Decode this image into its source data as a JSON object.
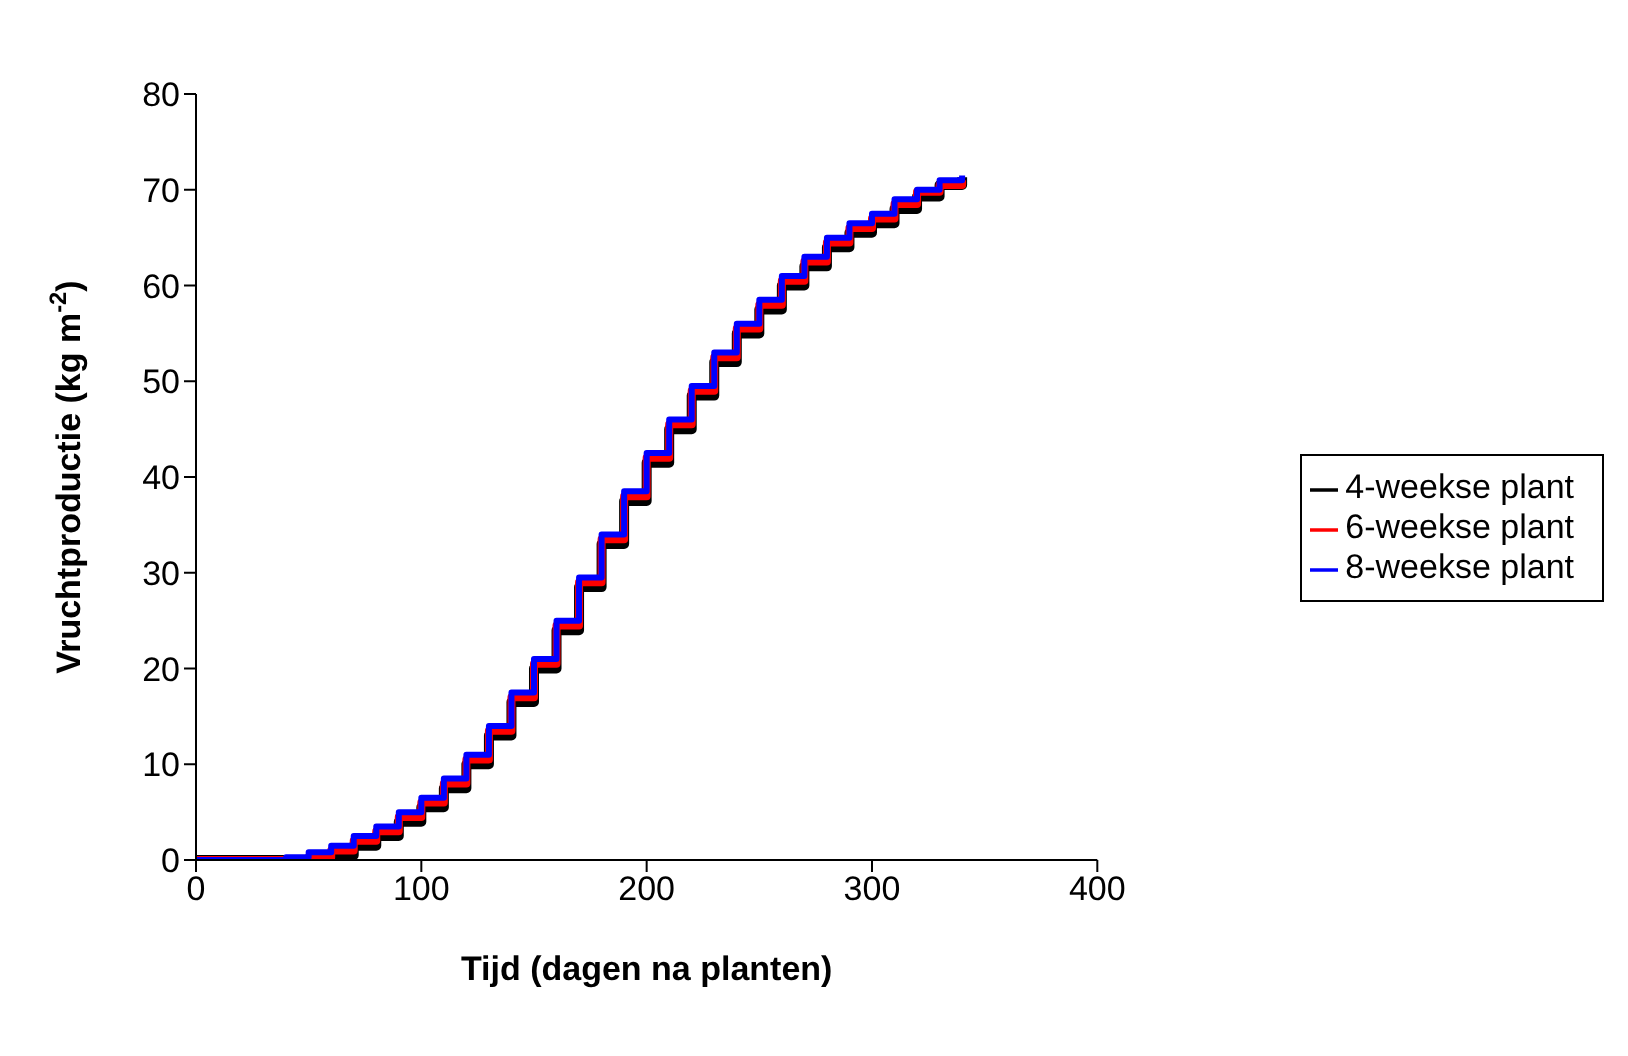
{
  "chart_data": {
    "type": "step",
    "xlabel": "Tijd (dagen na planten)",
    "ylabel": "Vruchtproductie (kg m$^{-2}$)",
    "xlim": [
      0,
      400
    ],
    "xticks": [
      0,
      100,
      200,
      300,
      400
    ],
    "ylim": [
      0,
      80
    ],
    "yticks": [
      0,
      10,
      20,
      30,
      40,
      50,
      60,
      70,
      80
    ],
    "legend": "right",
    "marker": "none",
    "line_style": "solid",
    "series": [
      {
        "name": "4-weekse plant",
        "color": "#000000",
        "x": [
          0,
          60,
          70,
          80,
          90,
          100,
          110,
          120,
          130,
          140,
          150,
          160,
          170,
          180,
          190,
          200,
          210,
          220,
          230,
          240,
          250,
          260,
          270,
          280,
          290,
          300,
          310,
          320,
          330,
          340
        ],
        "values": [
          0,
          0.5,
          1.5,
          2.5,
          4,
          5.5,
          7.5,
          10,
          13,
          16.5,
          20,
          24,
          28.5,
          33,
          37.5,
          41.5,
          45,
          48.5,
          52,
          55,
          57.5,
          60,
          62,
          64,
          65.5,
          66.5,
          68,
          69.3,
          70.5,
          71.3
        ]
      },
      {
        "name": "6-weekse plant",
        "color": "#ff0000",
        "x": [
          0,
          50,
          60,
          70,
          80,
          90,
          100,
          110,
          120,
          130,
          140,
          150,
          160,
          170,
          180,
          190,
          200,
          210,
          220,
          230,
          240,
          250,
          260,
          270,
          280,
          290,
          300,
          310,
          320,
          330,
          340
        ],
        "values": [
          0,
          0.3,
          1,
          2,
          3,
          4.5,
          6,
          8,
          10.5,
          13.5,
          17,
          20.5,
          24.5,
          29,
          33.5,
          38,
          42,
          45.5,
          49,
          52.5,
          55.5,
          58,
          60.5,
          62.5,
          64.5,
          66,
          67,
          68.5,
          69.8,
          70.5,
          71
        ]
      },
      {
        "name": "8-weekse plant",
        "color": "#0000ff",
        "x": [
          0,
          40,
          50,
          60,
          70,
          80,
          90,
          100,
          110,
          120,
          130,
          140,
          150,
          160,
          170,
          180,
          190,
          200,
          210,
          220,
          230,
          240,
          250,
          260,
          270,
          280,
          290,
          300,
          310,
          320,
          330,
          340
        ],
        "values": [
          0,
          0.3,
          0.8,
          1.5,
          2.5,
          3.5,
          5,
          6.5,
          8.5,
          11,
          14,
          17.5,
          21,
          25,
          29.5,
          34,
          38.5,
          42.5,
          46,
          49.5,
          53,
          56,
          58.5,
          61,
          63,
          65,
          66.5,
          67.5,
          69,
          70,
          71,
          71.5
        ]
      }
    ]
  }
}
